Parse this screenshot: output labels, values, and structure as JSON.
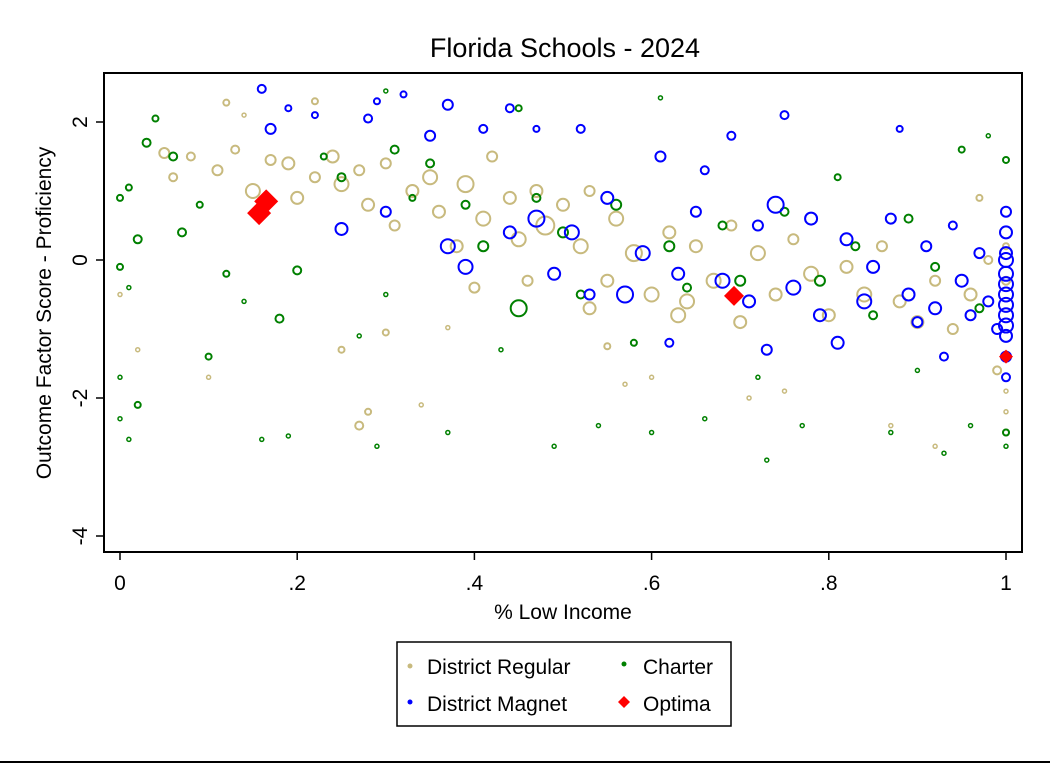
{
  "chart_data": {
    "type": "scatter",
    "title": "Florida Schools - 2024",
    "xlabel": "% Low Income",
    "ylabel": "Outcome Factor Score - Proficiency",
    "xlim": [
      -0.02,
      1.03
    ],
    "ylim": [
      -4.3,
      2.7
    ],
    "xticks": [
      {
        "v": 0,
        "label": "0"
      },
      {
        "v": 0.2,
        "label": ".2"
      },
      {
        "v": 0.4,
        "label": ".4"
      },
      {
        "v": 0.6,
        "label": ".6"
      },
      {
        "v": 0.8,
        "label": ".8"
      },
      {
        "v": 1,
        "label": "1"
      }
    ],
    "yticks": [
      {
        "v": 2,
        "label": "2"
      },
      {
        "v": 0,
        "label": "0"
      },
      {
        "v": -2,
        "label": "-2"
      },
      {
        "v": -4,
        "label": "-4"
      }
    ],
    "grid": false,
    "legend_placement": "bottom",
    "legend": [
      "District Regular",
      "Charter",
      "District Magnet",
      "Optima"
    ],
    "point_format": [
      "x",
      "y",
      "relative_size"
    ],
    "series": [
      {
        "name": "District Regular",
        "color": "#C8BA7E",
        "marker": "hollow-circle",
        "points": [
          [
            0.12,
            2.28,
            3
          ],
          [
            0.14,
            2.1,
            2
          ],
          [
            0.22,
            2.3,
            3
          ],
          [
            0.05,
            1.55,
            5
          ],
          [
            0.06,
            1.2,
            4
          ],
          [
            0.08,
            1.5,
            4
          ],
          [
            0.11,
            1.3,
            5
          ],
          [
            0.13,
            1.6,
            4
          ],
          [
            0.15,
            1.0,
            7
          ],
          [
            0.17,
            1.45,
            5
          ],
          [
            0.19,
            1.4,
            6
          ],
          [
            0.2,
            0.9,
            6
          ],
          [
            0.22,
            1.2,
            5
          ],
          [
            0.24,
            1.5,
            6
          ],
          [
            0.25,
            1.1,
            7
          ],
          [
            0.27,
            1.3,
            5
          ],
          [
            0.28,
            0.8,
            6
          ],
          [
            0.3,
            1.4,
            5
          ],
          [
            0.31,
            0.5,
            5
          ],
          [
            0.33,
            1.0,
            6
          ],
          [
            0.35,
            1.2,
            7
          ],
          [
            0.36,
            0.7,
            6
          ],
          [
            0.38,
            0.2,
            6
          ],
          [
            0.39,
            1.1,
            8
          ],
          [
            0.41,
            0.6,
            7
          ],
          [
            0.42,
            1.5,
            5
          ],
          [
            0.44,
            0.9,
            6
          ],
          [
            0.45,
            0.3,
            7
          ],
          [
            0.47,
            1.0,
            6
          ],
          [
            0.48,
            0.5,
            9
          ],
          [
            0.5,
            0.8,
            6
          ],
          [
            0.52,
            0.2,
            7
          ],
          [
            0.53,
            1.0,
            5
          ],
          [
            0.55,
            -0.3,
            6
          ],
          [
            0.56,
            0.6,
            7
          ],
          [
            0.58,
            0.1,
            8
          ],
          [
            0.6,
            -0.5,
            7
          ],
          [
            0.62,
            0.4,
            6
          ],
          [
            0.63,
            -0.8,
            7
          ],
          [
            0.65,
            0.2,
            6
          ],
          [
            0.67,
            -0.3,
            7
          ],
          [
            0.69,
            0.5,
            5
          ],
          [
            0.7,
            -0.9,
            6
          ],
          [
            0.72,
            0.1,
            7
          ],
          [
            0.74,
            -0.5,
            6
          ],
          [
            0.76,
            0.3,
            5
          ],
          [
            0.78,
            -0.2,
            7
          ],
          [
            0.8,
            -0.8,
            6
          ],
          [
            0.82,
            -0.1,
            6
          ],
          [
            0.84,
            -0.5,
            7
          ],
          [
            0.86,
            0.2,
            5
          ],
          [
            0.88,
            -0.6,
            6
          ],
          [
            0.9,
            -0.9,
            6
          ],
          [
            0.92,
            -0.3,
            5
          ],
          [
            0.94,
            -1.0,
            5
          ],
          [
            0.96,
            -0.5,
            6
          ],
          [
            0.98,
            0.0,
            4
          ],
          [
            0.99,
            -1.6,
            4
          ],
          [
            1.0,
            -1.9,
            2
          ],
          [
            1.0,
            -2.2,
            2
          ],
          [
            0.27,
            -2.4,
            4
          ],
          [
            0.28,
            -2.2,
            3
          ],
          [
            0.34,
            -2.1,
            2
          ],
          [
            0.3,
            -1.05,
            3
          ],
          [
            0.25,
            -1.3,
            3
          ],
          [
            0.02,
            -1.3,
            2
          ],
          [
            0.0,
            -0.5,
            2
          ],
          [
            0.1,
            -1.7,
            2
          ],
          [
            0.37,
            -0.98,
            2
          ],
          [
            0.55,
            -1.25,
            3
          ],
          [
            0.57,
            -1.8,
            2
          ],
          [
            0.6,
            -1.7,
            2
          ],
          [
            0.75,
            -1.9,
            2
          ],
          [
            0.87,
            -2.4,
            2
          ],
          [
            0.92,
            -2.7,
            2
          ],
          [
            0.71,
            -2.0,
            2
          ],
          [
            0.4,
            -0.4,
            5
          ],
          [
            0.46,
            -0.3,
            5
          ],
          [
            0.53,
            -0.7,
            6
          ],
          [
            0.64,
            -0.6,
            7
          ],
          [
            1.0,
            -0.3,
            4
          ],
          [
            1.0,
            0.2,
            3
          ],
          [
            0.97,
            0.9,
            3
          ],
          [
            1.0,
            -2.5,
            3
          ]
        ]
      },
      {
        "name": "Charter",
        "color": "#008000",
        "marker": "hollow-circle",
        "points": [
          [
            0.0,
            0.9,
            3
          ],
          [
            0.01,
            1.05,
            3
          ],
          [
            0.0,
            -0.1,
            3
          ],
          [
            0.01,
            -0.4,
            2
          ],
          [
            0.0,
            -1.7,
            2
          ],
          [
            0.0,
            -2.3,
            2
          ],
          [
            0.01,
            -2.6,
            2
          ],
          [
            0.02,
            -2.1,
            3
          ],
          [
            0.02,
            0.3,
            4
          ],
          [
            0.03,
            1.7,
            4
          ],
          [
            0.04,
            2.05,
            3
          ],
          [
            0.06,
            1.5,
            4
          ],
          [
            0.07,
            0.4,
            4
          ],
          [
            0.09,
            0.8,
            3
          ],
          [
            0.1,
            -1.4,
            3
          ],
          [
            0.12,
            -0.2,
            3
          ],
          [
            0.14,
            -0.6,
            2
          ],
          [
            0.16,
            -2.6,
            2
          ],
          [
            0.19,
            -2.55,
            2
          ],
          [
            0.2,
            -0.15,
            4
          ],
          [
            0.18,
            -0.85,
            4
          ],
          [
            0.23,
            1.5,
            3
          ],
          [
            0.25,
            1.2,
            4
          ],
          [
            0.27,
            -1.1,
            2
          ],
          [
            0.29,
            -2.7,
            2
          ],
          [
            0.3,
            -0.5,
            2
          ],
          [
            0.31,
            1.6,
            4
          ],
          [
            0.33,
            0.9,
            3
          ],
          [
            0.35,
            1.4,
            4
          ],
          [
            0.37,
            -2.5,
            2
          ],
          [
            0.39,
            0.8,
            4
          ],
          [
            0.41,
            0.2,
            5
          ],
          [
            0.43,
            -1.3,
            2
          ],
          [
            0.45,
            -0.7,
            8
          ],
          [
            0.47,
            0.9,
            4
          ],
          [
            0.49,
            -2.7,
            2
          ],
          [
            0.5,
            0.4,
            5
          ],
          [
            0.52,
            -0.5,
            4
          ],
          [
            0.54,
            -2.4,
            2
          ],
          [
            0.56,
            0.8,
            5
          ],
          [
            0.58,
            -1.2,
            3
          ],
          [
            0.6,
            -2.5,
            2
          ],
          [
            0.62,
            0.2,
            5
          ],
          [
            0.64,
            -0.4,
            4
          ],
          [
            0.66,
            -2.3,
            2
          ],
          [
            0.68,
            0.5,
            4
          ],
          [
            0.7,
            -0.3,
            5
          ],
          [
            0.72,
            -1.7,
            2
          ],
          [
            0.73,
            -2.9,
            2
          ],
          [
            0.75,
            0.7,
            4
          ],
          [
            0.77,
            -2.4,
            2
          ],
          [
            0.79,
            -0.3,
            5
          ],
          [
            0.81,
            1.2,
            3
          ],
          [
            0.83,
            0.2,
            4
          ],
          [
            0.85,
            -0.8,
            4
          ],
          [
            0.87,
            -2.5,
            2
          ],
          [
            0.89,
            0.6,
            4
          ],
          [
            0.9,
            -1.6,
            2
          ],
          [
            0.92,
            -0.1,
            4
          ],
          [
            0.93,
            -2.8,
            2
          ],
          [
            0.95,
            1.6,
            3
          ],
          [
            0.96,
            -2.4,
            2
          ],
          [
            0.97,
            -0.7,
            4
          ],
          [
            0.98,
            1.8,
            2
          ],
          [
            1.0,
            1.45,
            3
          ],
          [
            1.0,
            -2.5,
            3
          ],
          [
            1.0,
            -2.7,
            2
          ],
          [
            0.61,
            2.35,
            2
          ],
          [
            0.45,
            2.2,
            3
          ],
          [
            0.3,
            2.45,
            2
          ]
        ]
      },
      {
        "name": "District Magnet",
        "color": "#0000FF",
        "marker": "hollow-circle",
        "points": [
          [
            0.16,
            2.48,
            4
          ],
          [
            0.19,
            2.2,
            3
          ],
          [
            0.17,
            1.9,
            5
          ],
          [
            0.22,
            2.1,
            3
          ],
          [
            0.28,
            2.05,
            4
          ],
          [
            0.29,
            2.3,
            3
          ],
          [
            0.32,
            2.4,
            3
          ],
          [
            0.35,
            1.8,
            5
          ],
          [
            0.37,
            2.25,
            5
          ],
          [
            0.41,
            1.9,
            4
          ],
          [
            0.44,
            2.2,
            4
          ],
          [
            0.47,
            1.9,
            3
          ],
          [
            0.52,
            1.9,
            4
          ],
          [
            0.25,
            0.45,
            6
          ],
          [
            0.3,
            0.7,
            5
          ],
          [
            0.37,
            0.2,
            7
          ],
          [
            0.39,
            -0.1,
            7
          ],
          [
            0.44,
            0.4,
            6
          ],
          [
            0.47,
            0.6,
            8
          ],
          [
            0.49,
            -0.2,
            6
          ],
          [
            0.51,
            0.4,
            7
          ],
          [
            0.53,
            -0.5,
            5
          ],
          [
            0.55,
            0.9,
            6
          ],
          [
            0.57,
            -0.5,
            8
          ],
          [
            0.59,
            0.1,
            7
          ],
          [
            0.61,
            1.5,
            5
          ],
          [
            0.63,
            -0.2,
            6
          ],
          [
            0.65,
            0.7,
            5
          ],
          [
            0.68,
            -0.3,
            7
          ],
          [
            0.69,
            1.8,
            4
          ],
          [
            0.71,
            -0.6,
            6
          ],
          [
            0.72,
            0.5,
            5
          ],
          [
            0.74,
            0.8,
            8
          ],
          [
            0.75,
            2.1,
            4
          ],
          [
            0.76,
            -0.4,
            7
          ],
          [
            0.78,
            0.6,
            6
          ],
          [
            0.79,
            -0.8,
            6
          ],
          [
            0.81,
            -1.2,
            6
          ],
          [
            0.82,
            0.3,
            6
          ],
          [
            0.84,
            -0.6,
            7
          ],
          [
            0.85,
            -0.1,
            6
          ],
          [
            0.87,
            0.6,
            5
          ],
          [
            0.88,
            1.9,
            3
          ],
          [
            0.89,
            -0.5,
            6
          ],
          [
            0.9,
            -0.9,
            5
          ],
          [
            0.91,
            0.2,
            5
          ],
          [
            0.92,
            -0.7,
            6
          ],
          [
            0.93,
            -1.4,
            4
          ],
          [
            0.94,
            0.5,
            4
          ],
          [
            0.95,
            -0.3,
            6
          ],
          [
            0.96,
            -0.8,
            5
          ],
          [
            0.97,
            0.1,
            5
          ],
          [
            0.98,
            -0.6,
            5
          ],
          [
            0.99,
            -1.0,
            5
          ],
          [
            1.0,
            0.7,
            5
          ],
          [
            1.0,
            0.4,
            6
          ],
          [
            1.0,
            0.1,
            6
          ],
          [
            1.0,
            -0.2,
            7
          ],
          [
            1.0,
            -0.5,
            7
          ],
          [
            1.0,
            -0.8,
            7
          ],
          [
            1.0,
            -1.1,
            6
          ],
          [
            1.0,
            -1.4,
            5
          ],
          [
            1.0,
            -1.7,
            4
          ],
          [
            0.62,
            -1.2,
            4
          ],
          [
            0.73,
            -1.3,
            5
          ],
          [
            0.66,
            1.3,
            4
          ],
          [
            1.0,
            0.0,
            7
          ],
          [
            1.0,
            -0.35,
            7
          ],
          [
            1.0,
            -0.65,
            7
          ],
          [
            1.0,
            -0.95,
            7
          ]
        ]
      },
      {
        "name": "Optima",
        "color": "#FF0000",
        "marker": "diamond",
        "points": [
          [
            0.157,
            0.68,
            12
          ],
          [
            0.165,
            0.85,
            12
          ],
          [
            0.693,
            -0.52,
            10
          ],
          [
            1.0,
            -1.4,
            7
          ]
        ]
      }
    ]
  },
  "colors": {
    "axis": "#000000",
    "background": "#FFFFFF"
  }
}
